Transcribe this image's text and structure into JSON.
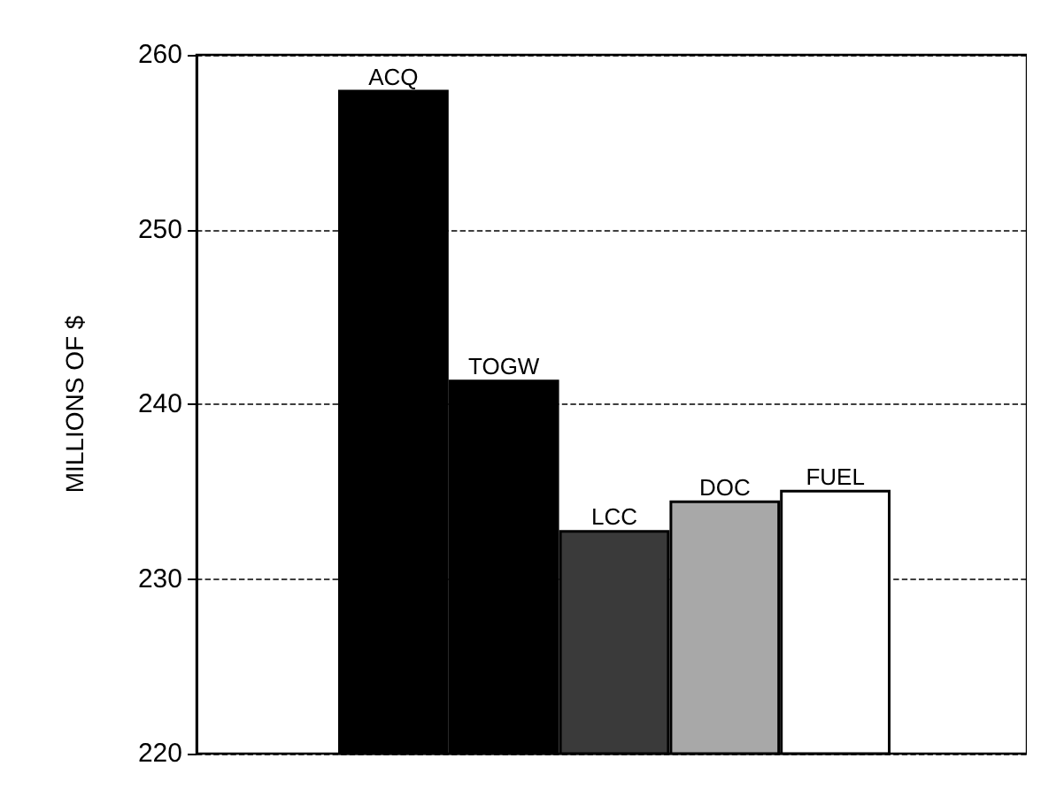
{
  "chart_data": {
    "type": "bar",
    "ylabel": "MILLIONS OF $",
    "categories": [
      "ACQ",
      "TOGW",
      "LCC",
      "DOC",
      "FUEL"
    ],
    "values": [
      258.0,
      241.4,
      232.8,
      234.5,
      235.1
    ],
    "colors": [
      "#000000",
      "#000000",
      "#3a3a3a",
      "#a8a8a8",
      "#ffffff"
    ],
    "ylim": [
      220,
      260
    ],
    "yticks": [
      220,
      230,
      240,
      250,
      260
    ],
    "grid": "y"
  }
}
